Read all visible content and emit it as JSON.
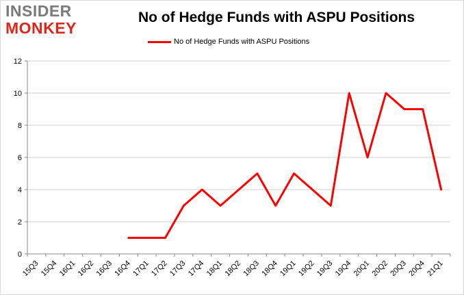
{
  "logo": {
    "line1": "INSIDER",
    "line2": "MONKEY"
  },
  "chart_data": {
    "type": "line",
    "title": "No of Hedge Funds with ASPU Positions",
    "xlabel": "",
    "ylabel": "",
    "categories": [
      "15Q3",
      "15Q4",
      "16Q1",
      "16Q2",
      "16Q3",
      "16Q4",
      "17Q1",
      "17Q2",
      "17Q3",
      "17Q4",
      "18Q1",
      "18Q2",
      "18Q3",
      "18Q4",
      "19Q1",
      "19Q2",
      "19Q3",
      "19Q4",
      "20Q1",
      "20Q2",
      "20Q3",
      "20Q4",
      "21Q1"
    ],
    "series": [
      {
        "name": "No of Hedge Funds with ASPU Positions",
        "color": "#ff0000",
        "values": [
          null,
          null,
          null,
          null,
          null,
          1,
          1,
          1,
          3,
          4,
          3,
          4,
          5,
          3,
          5,
          4,
          3,
          10,
          6,
          10,
          9,
          9,
          4
        ]
      }
    ],
    "ylim": [
      0,
      12
    ],
    "yticks": [
      0,
      2,
      4,
      6,
      8,
      10,
      12
    ],
    "grid": true,
    "legend": "top-center"
  }
}
